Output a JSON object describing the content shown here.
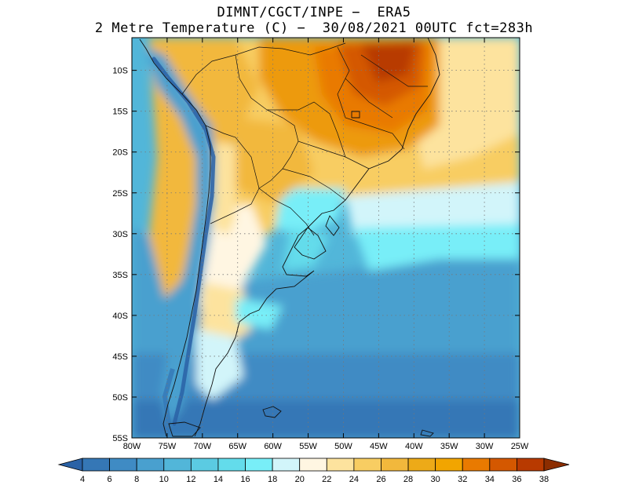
{
  "header": {
    "line1": "DIMNT/CGCT/INPE −  ERA5",
    "line2": "2 Metre Temperature (C) −  30/08/2021 00UTC fct=283h"
  },
  "map": {
    "lat_labels": [
      "10S",
      "15S",
      "20S",
      "25S",
      "30S",
      "35S",
      "40S",
      "45S",
      "50S",
      "55S"
    ],
    "lon_labels": [
      "80W",
      "75W",
      "70W",
      "65W",
      "60W",
      "55W",
      "50W",
      "45W",
      "40W",
      "35W",
      "30W",
      "25W"
    ],
    "lat_range": [
      -55,
      -6
    ],
    "lon_range": [
      -80,
      -25
    ]
  },
  "colorbar": {
    "labels": [
      "4",
      "6",
      "8",
      "10",
      "12",
      "14",
      "16",
      "18",
      "20",
      "22",
      "24",
      "26",
      "28",
      "30",
      "32",
      "34",
      "36",
      "38"
    ],
    "colors": [
      "#2a62a6",
      "#3577b6",
      "#3f8bc4",
      "#49a0cf",
      "#52b6d9",
      "#5bcbe2",
      "#63dceb",
      "#78eef8",
      "#d2f5fa",
      "#fff6e2",
      "#fde39e",
      "#f8cd62",
      "#f2b83c",
      "#edaa18",
      "#f2a500",
      "#e97a00",
      "#d45800",
      "#b83a00",
      "#8c2d00"
    ]
  }
}
